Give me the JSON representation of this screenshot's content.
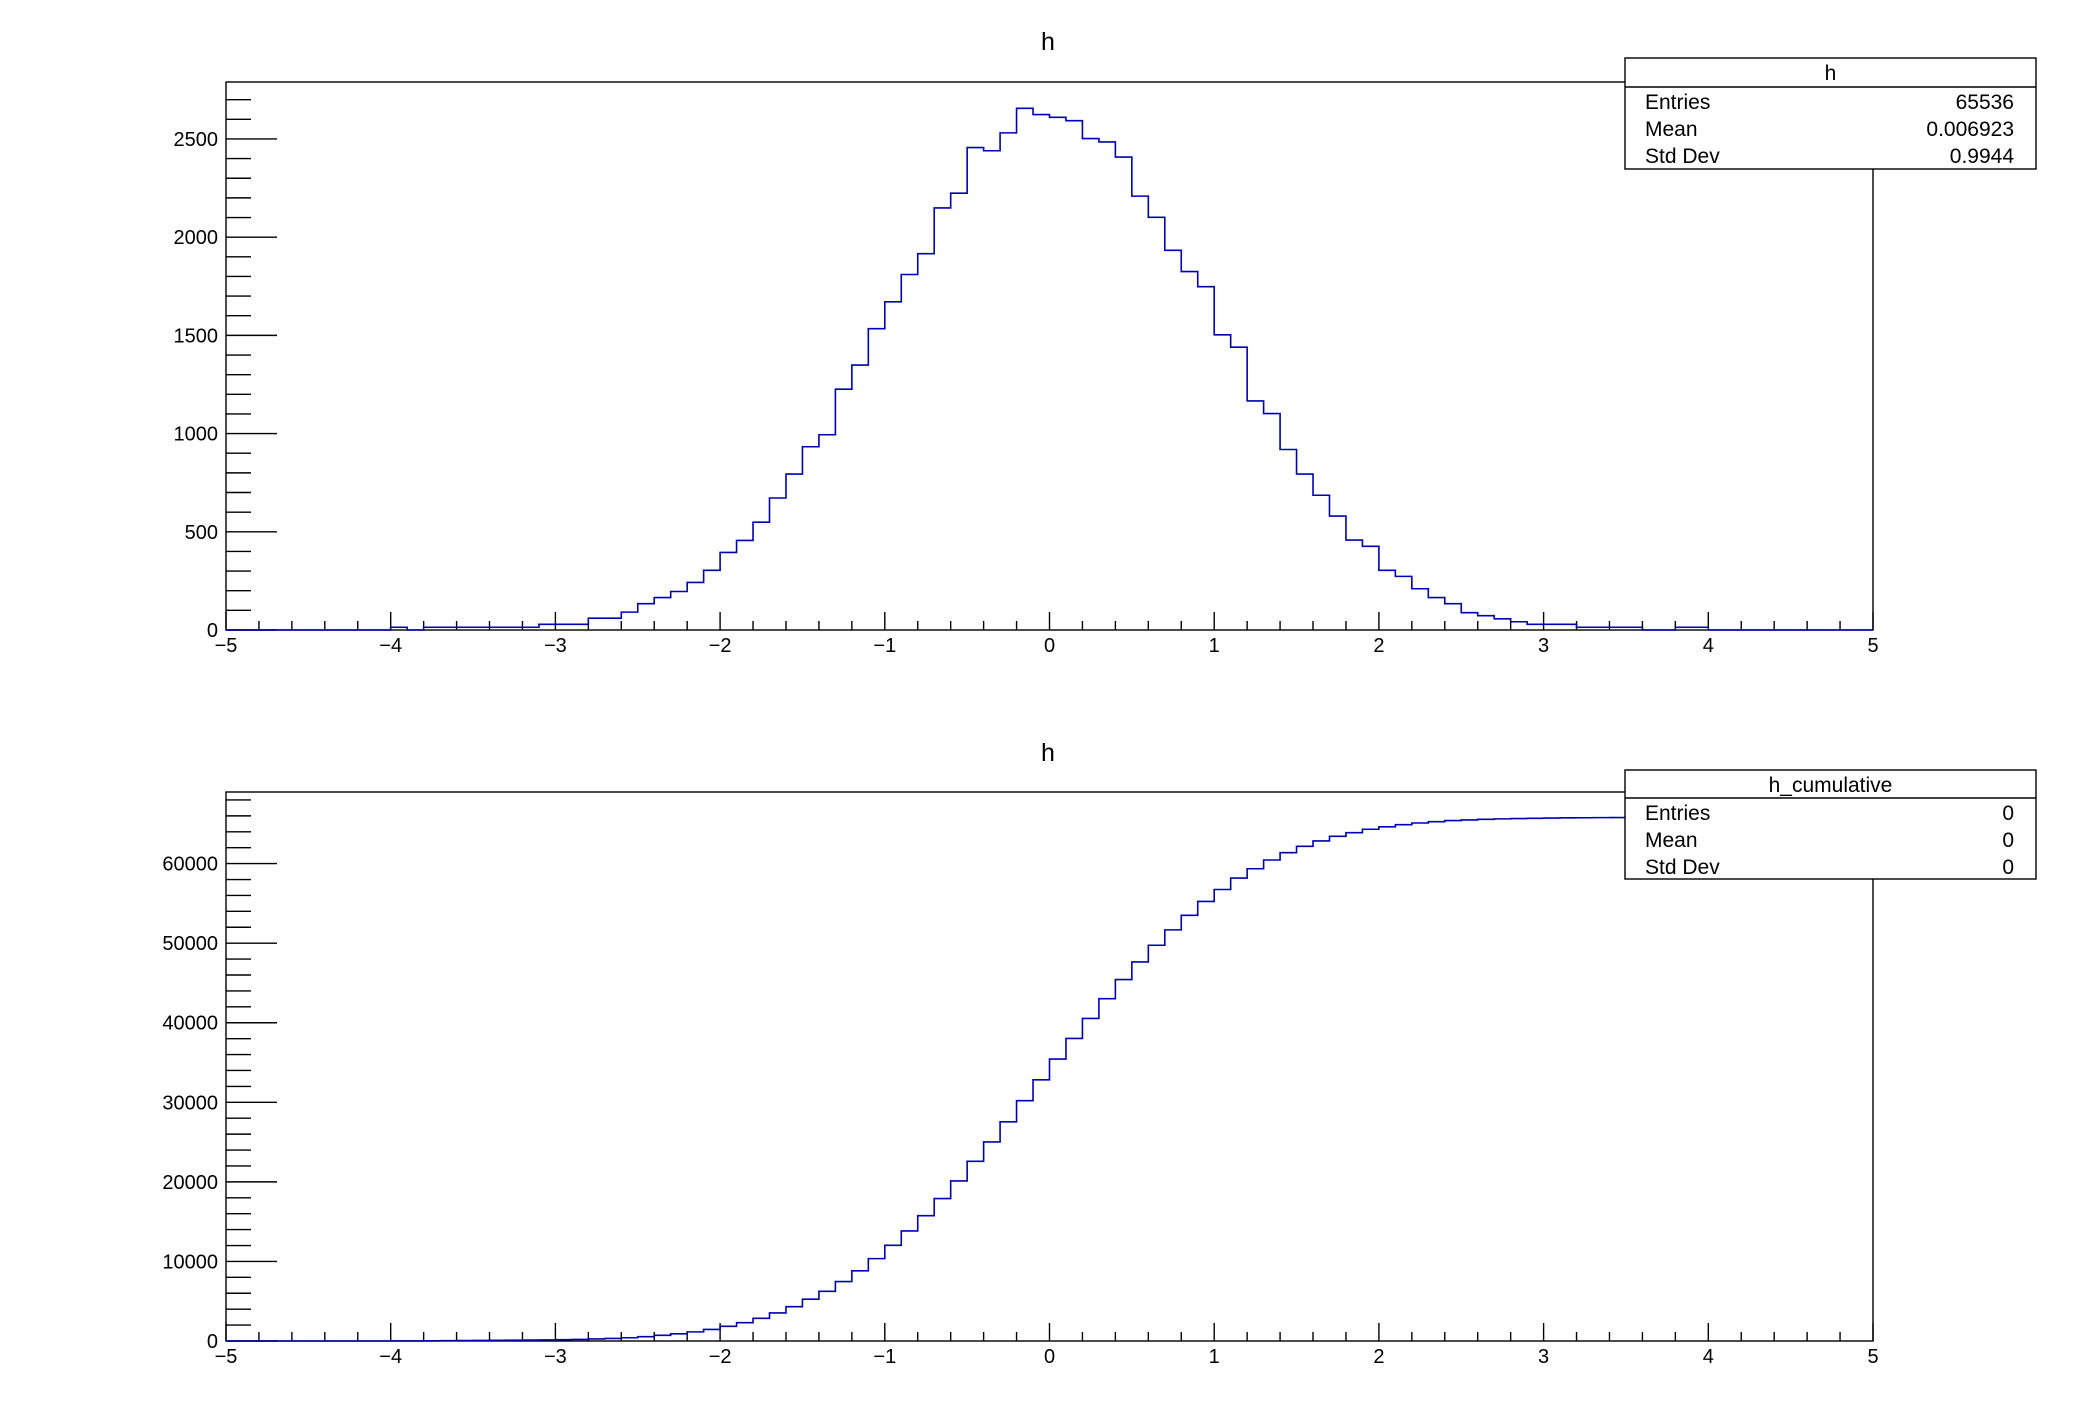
{
  "chart_data": [
    {
      "type": "bar",
      "histtype": "step",
      "title": "h",
      "xbins": {
        "n": 100,
        "min": -5,
        "max": 5
      },
      "xlim": [
        -5,
        5
      ],
      "ylim": [
        0,
        2790
      ],
      "xticks": [
        -5,
        -4,
        -3,
        -2,
        -1,
        0,
        1,
        2,
        3,
        4,
        5
      ],
      "xtick_labels": [
        "−5",
        "−4",
        "−3",
        "−2",
        "−1",
        "0",
        "1",
        "2",
        "3",
        "4",
        "5"
      ],
      "yticks": [
        0,
        500,
        1000,
        1500,
        2000,
        2500
      ],
      "ytick_labels": [
        "0",
        "500",
        "1000",
        "1500",
        "2000",
        "2500"
      ],
      "color": "#0000b0",
      "values": [
        0,
        0,
        0,
        0,
        0,
        0,
        0,
        0,
        0,
        0,
        14,
        0,
        14,
        14,
        14,
        14,
        14,
        14,
        14,
        29,
        29,
        29,
        60,
        60,
        91,
        134,
        165,
        196,
        242,
        304,
        395,
        456,
        549,
        672,
        794,
        933,
        994,
        1226,
        1349,
        1534,
        1671,
        1810,
        1916,
        2149,
        2224,
        2456,
        2440,
        2531,
        2656,
        2624,
        2610,
        2593,
        2502,
        2485,
        2408,
        2209,
        2101,
        1933,
        1825,
        1748,
        1503,
        1440,
        1166,
        1102,
        919,
        794,
        686,
        580,
        458,
        426,
        304,
        273,
        210,
        165,
        134,
        88,
        73,
        57,
        42,
        29,
        29,
        29,
        14,
        14,
        14,
        14,
        0,
        0,
        14,
        14,
        0,
        0,
        0,
        0,
        0,
        0,
        0,
        0,
        0,
        0
      ],
      "stats": {
        "title": "h",
        "rows": [
          {
            "label": "Entries",
            "value": "65536"
          },
          {
            "label": "Mean",
            "value": "0.006923"
          },
          {
            "label": "Std Dev",
            "value": "0.9944"
          }
        ]
      }
    },
    {
      "type": "bar",
      "histtype": "step",
      "title": "h",
      "xbins": {
        "n": 100,
        "min": -5,
        "max": 5
      },
      "xlim": [
        -5,
        5
      ],
      "ylim": [
        0,
        69000
      ],
      "xticks": [
        -5,
        -4,
        -3,
        -2,
        -1,
        0,
        1,
        2,
        3,
        4,
        5
      ],
      "xtick_labels": [
        "−5",
        "−4",
        "−3",
        "−2",
        "−1",
        "0",
        "1",
        "2",
        "3",
        "4",
        "5"
      ],
      "yticks": [
        0,
        10000,
        20000,
        30000,
        40000,
        50000,
        60000
      ],
      "ytick_labels": [
        "0",
        "10000",
        "20000",
        "30000",
        "40000",
        "50000",
        "60000"
      ],
      "color": "#0000b0",
      "values": [
        0,
        0,
        0,
        0,
        0,
        0,
        0,
        0,
        0,
        0,
        14,
        14,
        28,
        42,
        56,
        70,
        84,
        98,
        112,
        141,
        170,
        199,
        259,
        319,
        410,
        544,
        709,
        905,
        1147,
        1451,
        1846,
        2302,
        2851,
        3523,
        4317,
        5250,
        6244,
        7470,
        8819,
        10353,
        12024,
        13834,
        15750,
        17899,
        20123,
        22579,
        25019,
        27550,
        30206,
        32830,
        35440,
        38033,
        40535,
        43020,
        45428,
        47637,
        49738,
        51671,
        53496,
        55244,
        56747,
        58187,
        59353,
        60455,
        61374,
        62168,
        62854,
        63434,
        63892,
        64318,
        64622,
        64895,
        65105,
        65270,
        65404,
        65492,
        65565,
        65622,
        65664,
        65693,
        65722,
        65751,
        65765,
        65779,
        65793,
        65807,
        65807,
        65807,
        65821,
        65835,
        65835,
        65835,
        65835,
        65835,
        65835,
        65835,
        65835,
        65835,
        65835,
        65835
      ],
      "stats": {
        "title": "h_cumulative",
        "rows": [
          {
            "label": "Entries",
            "value": "0"
          },
          {
            "label": "Mean",
            "value": "0"
          },
          {
            "label": "Std Dev",
            "value": "0"
          }
        ]
      }
    }
  ]
}
